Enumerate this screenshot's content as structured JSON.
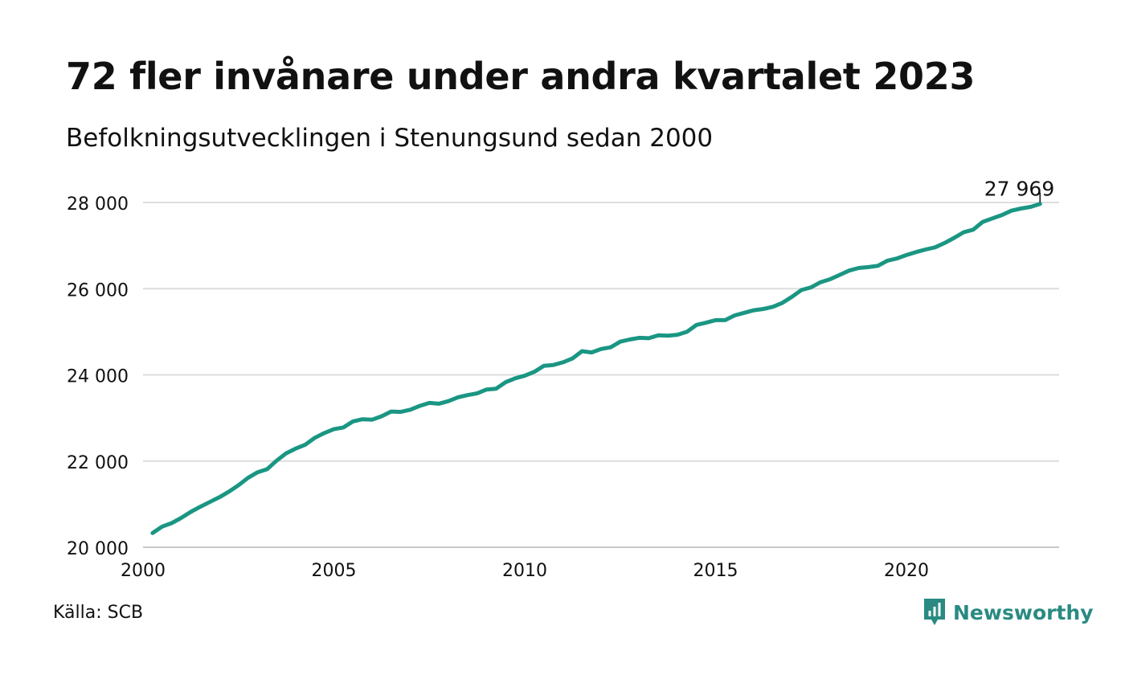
{
  "title": "72 fler invånare under andra kvartalet 2023",
  "subtitle": "Befolkningsutvecklingen i Stenungsund sedan 2000",
  "source": "Källa: SCB",
  "brand": {
    "name": "Newsworthy",
    "icon": "newsworthy-logo-icon"
  },
  "colors": {
    "line": "#1a9683",
    "grid": "#dedede",
    "brand": "#2a8a82",
    "text": "#111111"
  },
  "chart_data": {
    "type": "line",
    "title": "72 fler invånare under andra kvartalet 2023",
    "subtitle": "Befolkningsutvecklingen i Stenungsund sedan 2000",
    "xlabel": "",
    "ylabel": "",
    "xlim": [
      2000,
      2024
    ],
    "ylim": [
      20000,
      28000
    ],
    "x_ticks": [
      2000,
      2005,
      2010,
      2015,
      2020
    ],
    "x_tick_labels": [
      "2000",
      "2005",
      "2010",
      "2015",
      "2020"
    ],
    "y_ticks": [
      20000,
      22000,
      24000,
      26000,
      28000
    ],
    "y_tick_labels": [
      "20 000",
      "22 000",
      "24 000",
      "26 000",
      "28 000"
    ],
    "grid": "horizontal",
    "legend": "none",
    "end_label": "27 969",
    "series": [
      {
        "x": [
          2000.25,
          2000.5,
          2000.75,
          2001.0,
          2001.25,
          2001.5,
          2001.75,
          2002.0,
          2002.25,
          2002.5,
          2002.75,
          2003.0,
          2003.25,
          2003.5,
          2003.75,
          2004.0,
          2004.25,
          2004.5,
          2004.75,
          2005.0,
          2005.25,
          2005.5,
          2005.75,
          2006.0,
          2006.25,
          2006.5,
          2006.75,
          2007.0,
          2007.25,
          2007.5,
          2007.75,
          2008.0,
          2008.25,
          2008.5,
          2008.75,
          2009.0,
          2009.25,
          2009.5,
          2009.75,
          2010.0,
          2010.25,
          2010.5,
          2010.75,
          2011.0,
          2011.25,
          2011.5,
          2011.75,
          2012.0,
          2012.25,
          2012.5,
          2012.75,
          2013.0,
          2013.25,
          2013.5,
          2013.75,
          2014.0,
          2014.25,
          2014.5,
          2014.75,
          2015.0,
          2015.25,
          2015.5,
          2015.75,
          2016.0,
          2016.25,
          2016.5,
          2016.75,
          2017.0,
          2017.25,
          2017.5,
          2017.75,
          2018.0,
          2018.25,
          2018.5,
          2018.75,
          2019.0,
          2019.25,
          2019.5,
          2019.75,
          2020.0,
          2020.25,
          2020.5,
          2020.75,
          2021.0,
          2021.25,
          2021.5,
          2021.75,
          2022.0,
          2022.25,
          2022.5,
          2022.75,
          2023.0,
          2023.25,
          2023.5
        ],
        "values": [
          20330,
          20480,
          20560,
          20680,
          20820,
          20940,
          21050,
          21160,
          21290,
          21440,
          21610,
          21740,
          21810,
          22010,
          22180,
          22290,
          22380,
          22540,
          22650,
          22740,
          22780,
          22920,
          22970,
          22960,
          23040,
          23150,
          23140,
          23190,
          23280,
          23350,
          23330,
          23390,
          23480,
          23530,
          23570,
          23660,
          23680,
          23830,
          23920,
          23980,
          24070,
          24210,
          24230,
          24290,
          24380,
          24550,
          24520,
          24600,
          24640,
          24770,
          24820,
          24860,
          24850,
          24920,
          24910,
          24930,
          25000,
          25160,
          25210,
          25270,
          25270,
          25380,
          25440,
          25500,
          25530,
          25580,
          25670,
          25810,
          25970,
          26030,
          26150,
          26220,
          26320,
          26420,
          26480,
          26500,
          26530,
          26650,
          26700,
          26780,
          26850,
          26910,
          26960,
          27060,
          27180,
          27310,
          27370,
          27550,
          27630,
          27710,
          27810,
          27860,
          27897,
          27969
        ]
      }
    ]
  }
}
